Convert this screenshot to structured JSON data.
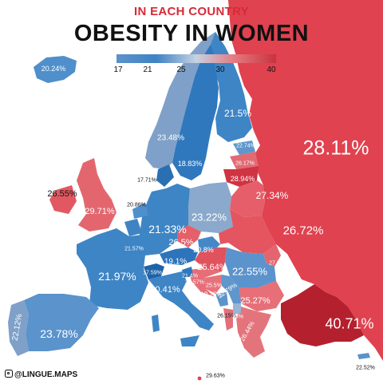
{
  "subtitle": "IN EACH COUNTRY",
  "title": "OBESITY IN WOMEN",
  "legend": {
    "ticks": [
      "17",
      "21",
      "25",
      "30",
      "40"
    ],
    "colors": [
      "#5b93cc",
      "#3f83c3",
      "#c6d2e2",
      "#e4767d",
      "#c8323f"
    ]
  },
  "credit": "@LINGUE.MAPS",
  "countries": {
    "russia": "28.11%",
    "turkey": "40.71%",
    "iceland": "20.24%",
    "finland": "21.5%",
    "norway": "23.48%",
    "sweden": "18.83%",
    "denmark": "17.71%",
    "estonia": "22.74%",
    "latvia": "26.17%",
    "lithuania": "28.94%",
    "belarus": "27.34%",
    "ireland": "26.55%",
    "uk": "29.71%",
    "netherlands": "20.86%",
    "germany": "21.33%",
    "poland": "23.22%",
    "ukraine": "26.72%",
    "belgium": "21.57%",
    "czechia": "26.5%",
    "slovakia": "20.8%",
    "austria": "19.1%",
    "hungary": "25.64%",
    "romania": "22.55%",
    "moldova": "27.05%",
    "france": "21.97%",
    "switzerland": "17.59%",
    "slovenia": "21.4%",
    "croatia": "25.57%",
    "bosnia": "25.5%",
    "serbia": "22.79%",
    "italy": "20.41%",
    "montenegro": "19.25%",
    "bulgaria": "25.27%",
    "albania": "26.15%",
    "macedonia": "23%",
    "greece": "26.44%",
    "portugal": "22.12%",
    "spain": "23.78%",
    "malta": "29.63%",
    "cyprus": "22.52%"
  }
}
